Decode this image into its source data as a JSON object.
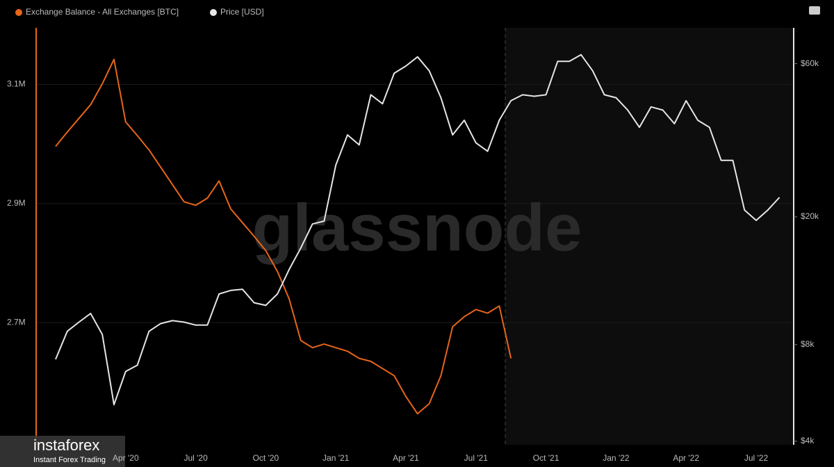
{
  "chart_data": {
    "type": "line",
    "legend": [
      "Exchange Balance - All Exchanges [BTC]",
      "Price [USD]"
    ],
    "watermark": "glassnode",
    "logo": {
      "name": "instaforex",
      "tagline": "Instant Forex Trading"
    },
    "categories": [
      null,
      null,
      null,
      null,
      null,
      null,
      "Apr '20",
      null,
      null,
      null,
      null,
      null,
      "Jul '20",
      null,
      null,
      null,
      null,
      null,
      "Oct '20",
      null,
      null,
      null,
      null,
      null,
      "Jan '21",
      null,
      null,
      null,
      null,
      null,
      "Apr '21",
      null,
      null,
      null,
      null,
      null,
      "Jul '21",
      null,
      null,
      null,
      null,
      null,
      "Oct '21",
      null,
      null,
      null,
      null,
      null,
      "Jan '22",
      null,
      null,
      null,
      null,
      null,
      "Apr '22",
      null,
      null,
      null,
      null,
      null,
      "Jul '22",
      null,
      null
    ],
    "series": [
      {
        "name": "Exchange Balance - All Exchanges [BTC]",
        "color": "#e8651a",
        "axis": "y",
        "values": [
          2996000,
          3020000,
          3043000,
          3066000,
          3101000,
          3142000,
          3037000,
          3014000,
          2990000,
          2961000,
          2932000,
          2903000,
          2897000,
          2909000,
          2938000,
          2891000,
          2868000,
          2845000,
          2821000,
          2786000,
          2740000,
          2670000,
          2658000,
          2664000,
          2658000,
          2652000,
          2640000,
          2635000,
          2623000,
          2611000,
          2576000,
          2547000,
          2564000,
          2611000,
          2693000,
          2710000,
          2722000,
          2716000,
          2728000,
          2640000,
          null,
          null,
          null,
          null,
          null,
          null,
          null,
          null,
          null,
          null,
          null,
          null,
          null,
          null,
          null,
          null,
          null,
          null,
          null,
          null,
          null,
          null,
          null
        ]
      },
      {
        "name": "Price [USD]",
        "color": "#e6e6e6",
        "axis": "y2",
        "values": [
          7200,
          8800,
          9400,
          10000,
          8600,
          5200,
          6600,
          6900,
          8800,
          9300,
          9500,
          9400,
          9200,
          9200,
          11500,
          11800,
          11900,
          10800,
          10600,
          11500,
          13700,
          16000,
          19000,
          19400,
          29000,
          36000,
          33500,
          48000,
          45000,
          56000,
          59000,
          63000,
          57000,
          47000,
          36000,
          40000,
          34000,
          32000,
          40000,
          46000,
          48000,
          47500,
          48000,
          61000,
          61000,
          64000,
          57000,
          48000,
          47000,
          43000,
          38000,
          44000,
          43000,
          39000,
          46000,
          40000,
          38000,
          30000,
          30000,
          21000,
          19500,
          21000,
          23000
        ]
      }
    ],
    "ylim": [
      2495000,
      3195000
    ],
    "yticks": [
      {
        "value": 2700000,
        "label": "2.7M"
      },
      {
        "value": 2900000,
        "label": "2.9M"
      },
      {
        "value": 3100000,
        "label": "3.1M"
      }
    ],
    "y2lim": [
      3900,
      77600
    ],
    "y2log": true,
    "y2ticks": [
      {
        "value": 4000,
        "label": "$4k"
      },
      {
        "value": 8000,
        "label": "$8k"
      },
      {
        "value": 20000,
        "label": "$20k"
      },
      {
        "value": 60000,
        "label": "$60k"
      }
    ],
    "grid": true
  }
}
